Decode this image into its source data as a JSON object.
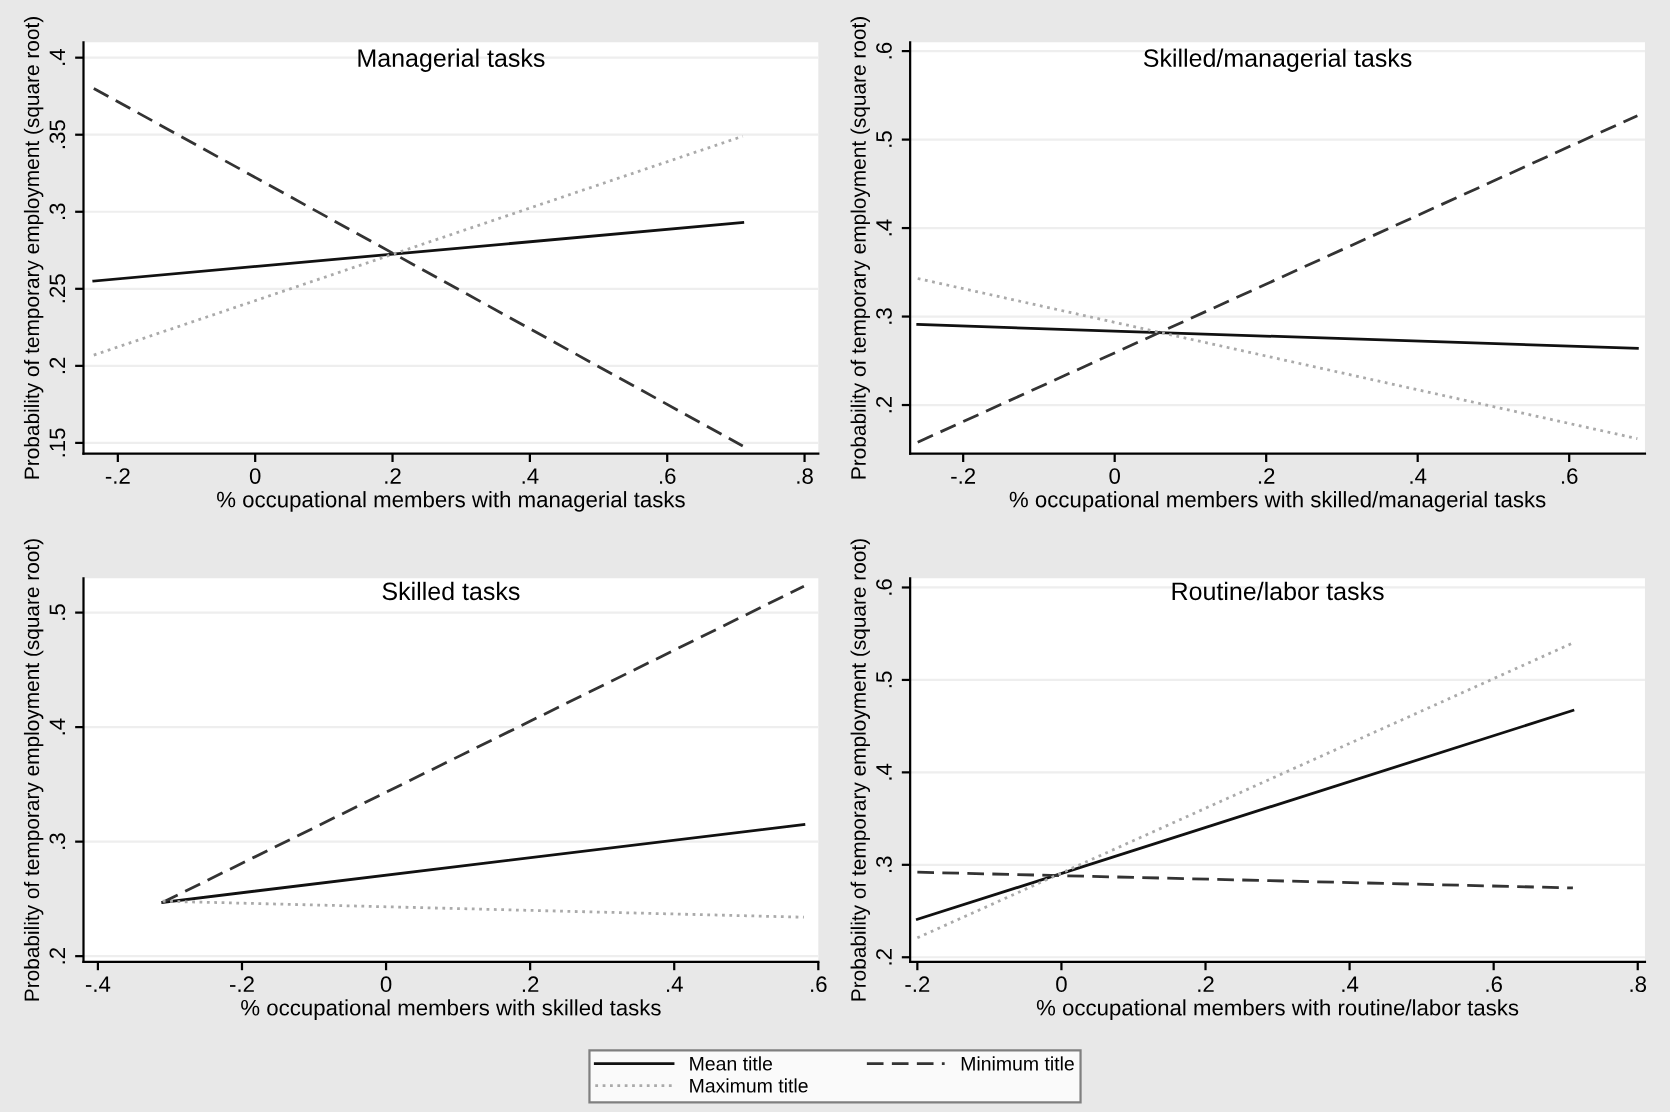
{
  "chart_data": [
    {
      "type": "line",
      "title": "Managerial tasks",
      "xlabel": "% occupational members with managerial tasks",
      "ylabel": "Probability of temporary employment (square root)",
      "xlim": [
        -0.25,
        0.82
      ],
      "ylim": [
        0.143,
        0.41
      ],
      "xticks": [
        {
          "value": -0.2,
          "label": "-.2"
        },
        0,
        {
          "value": 0.2,
          "label": ".2"
        },
        {
          "value": 0.4,
          "label": ".4"
        },
        {
          "value": 0.6,
          "label": ".6"
        },
        {
          "value": 0.8,
          "label": ".8"
        }
      ],
      "yticks": [
        {
          "value": 0.15,
          "label": ".15"
        },
        {
          "value": 0.2,
          "label": ".2"
        },
        {
          "value": 0.25,
          "label": ".25"
        },
        {
          "value": 0.3,
          "label": ".3"
        },
        {
          "value": 0.35,
          "label": ".35"
        },
        {
          "value": 0.4,
          "label": ".4"
        }
      ],
      "grid": "y",
      "legend": "bottom",
      "x": [
        -0.235,
        0.71
      ],
      "series": [
        {
          "name": "Mean title",
          "color": "#111111",
          "line_style": "solid",
          "values": [
            0.255,
            0.293
          ]
        },
        {
          "name": "Maximum title",
          "color": "#aaaaaa",
          "line_style": "dotted",
          "values": [
            0.207,
            0.349
          ]
        },
        {
          "name": "Minimum title",
          "color": "#333333",
          "line_style": "dashed",
          "values": [
            0.38,
            0.148
          ]
        }
      ]
    },
    {
      "type": "line",
      "title": "Skilled/managerial tasks",
      "xlabel": "% occupational members with skilled/managerial tasks",
      "ylabel": "Probability of temporary employment (square root)",
      "xlim": [
        -0.27,
        0.7
      ],
      "ylim": [
        0.145,
        0.61
      ],
      "xticks": [
        {
          "value": -0.2,
          "label": "-.2"
        },
        0,
        {
          "value": 0.2,
          "label": ".2"
        },
        {
          "value": 0.4,
          "label": ".4"
        },
        {
          "value": 0.6,
          "label": ".6"
        }
      ],
      "yticks": [
        {
          "value": 0.2,
          "label": ".2"
        },
        {
          "value": 0.3,
          "label": ".3"
        },
        {
          "value": 0.4,
          "label": ".4"
        },
        {
          "value": 0.5,
          "label": ".5"
        },
        {
          "value": 0.6,
          "label": ".6"
        }
      ],
      "grid": "y",
      "x": [
        -0.26,
        0.69
      ],
      "series": [
        {
          "color": "#111111",
          "line_style": "solid",
          "values": [
            0.291,
            0.264
          ]
        },
        {
          "color": "#333333",
          "line_style": "dashed",
          "values": [
            0.158,
            0.527
          ]
        },
        {
          "color": "#aaaaaa",
          "line_style": "dotted",
          "values": [
            0.343,
            0.162
          ]
        }
      ]
    },
    {
      "type": "line",
      "title": "Skilled tasks",
      "xlabel": "% occupational members with skilled tasks",
      "ylabel": "Probability of temporary employment (square root)",
      "xlim": [
        -0.42,
        0.6
      ],
      "ylim": [
        0.195,
        0.53
      ],
      "xticks": [
        {
          "value": -0.4,
          "label": "-.4"
        },
        {
          "value": -0.2,
          "label": "-.2"
        },
        0,
        {
          "value": 0.2,
          "label": ".2"
        },
        {
          "value": 0.4,
          "label": ".4"
        },
        {
          "value": 0.6,
          "label": ".6"
        }
      ],
      "yticks": [
        {
          "value": 0.2,
          "label": ".2"
        },
        {
          "value": 0.3,
          "label": ".3"
        },
        {
          "value": 0.4,
          "label": ".4"
        },
        {
          "value": 0.5,
          "label": ".5"
        }
      ],
      "grid": "y",
      "x": [
        -0.31,
        0.58
      ],
      "series": [
        {
          "color": "#111111",
          "line_style": "solid",
          "values": [
            0.247,
            0.315
          ]
        },
        {
          "color": "#333333",
          "line_style": "dashed",
          "values": [
            0.247,
            0.523
          ]
        },
        {
          "color": "#aaaaaa",
          "line_style": "dotted",
          "values": [
            0.248,
            0.234
          ]
        }
      ]
    },
    {
      "type": "line",
      "title": "Routine/labor tasks",
      "xlabel": "% occupational members with routine/labor tasks",
      "ylabel": "Probability of temporary employment (square root)",
      "xlim": [
        -0.21,
        0.81
      ],
      "ylim": [
        0.195,
        0.61
      ],
      "xticks": [
        {
          "value": -0.2,
          "label": "-.2"
        },
        0,
        {
          "value": 0.2,
          "label": ".2"
        },
        {
          "value": 0.4,
          "label": ".4"
        },
        {
          "value": 0.6,
          "label": ".6"
        },
        {
          "value": 0.8,
          "label": ".8"
        }
      ],
      "yticks": [
        {
          "value": 0.2,
          "label": ".2"
        },
        {
          "value": 0.3,
          "label": ".3"
        },
        {
          "value": 0.4,
          "label": ".4"
        },
        {
          "value": 0.5,
          "label": ".5"
        },
        {
          "value": 0.6,
          "label": ".6"
        }
      ],
      "grid": "y",
      "x": [
        -0.2,
        0.71
      ],
      "series": [
        {
          "color": "#111111",
          "line_style": "solid",
          "values": [
            0.241,
            0.467
          ]
        },
        {
          "color": "#333333",
          "line_style": "dashed",
          "values": [
            0.292,
            0.275
          ]
        },
        {
          "color": "#aaaaaa",
          "line_style": "dotted",
          "values": [
            0.221,
            0.54
          ]
        }
      ]
    }
  ]
}
